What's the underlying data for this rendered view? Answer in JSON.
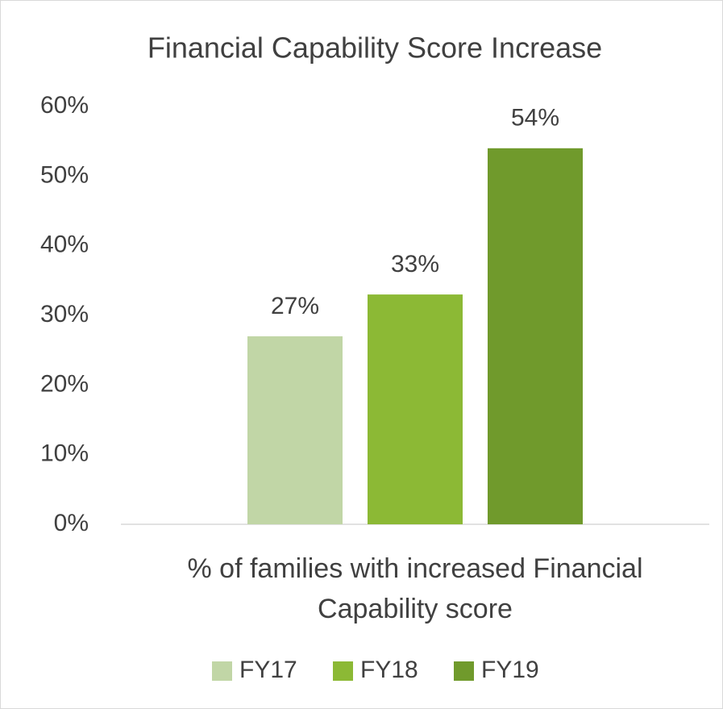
{
  "chart_data": {
    "type": "bar",
    "title": "Financial Capability Score Increase",
    "categories": [
      "% of families with increased Financial Capability score"
    ],
    "series": [
      {
        "name": "FY17",
        "color": "#c1d6a6",
        "values": [
          27
        ],
        "value_labels": [
          "27%"
        ]
      },
      {
        "name": "FY18",
        "color": "#8cb935",
        "values": [
          33
        ],
        "value_labels": [
          "33%"
        ]
      },
      {
        "name": "FY19",
        "color": "#709a2c",
        "values": [
          54
        ],
        "value_labels": [
          "54%"
        ]
      }
    ],
    "ylim": [
      0,
      60
    ],
    "yticks": [
      {
        "value": 0,
        "label": "0%"
      },
      {
        "value": 10,
        "label": "10%"
      },
      {
        "value": 20,
        "label": "20%"
      },
      {
        "value": 30,
        "label": "30%"
      },
      {
        "value": 40,
        "label": "40%"
      },
      {
        "value": 50,
        "label": "50%"
      },
      {
        "value": 60,
        "label": "60%"
      }
    ],
    "grid": false,
    "legend": "bottom"
  }
}
